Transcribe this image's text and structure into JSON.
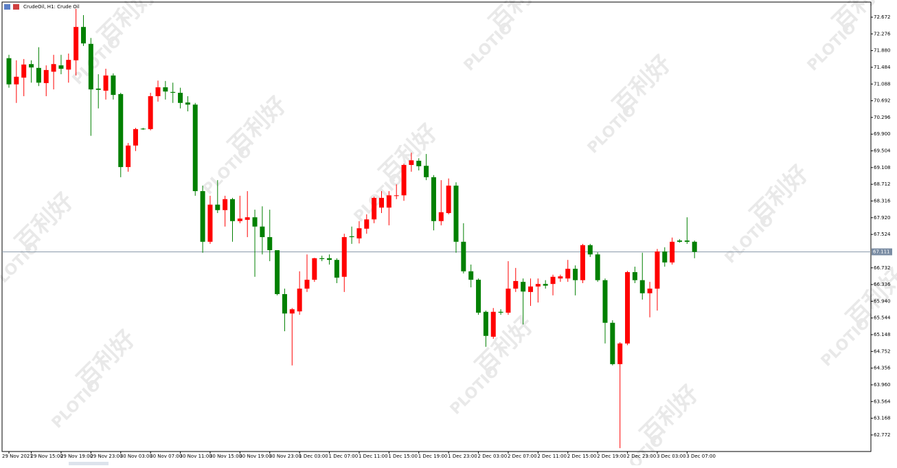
{
  "chart_data": {
    "type": "candlestick",
    "title": "CrudeOil, H1:  Crude Oil",
    "watermark": {
      "text": "百利好",
      "brand": "PLOTIO"
    },
    "up_color": "#ff0000",
    "down_color": "#008000",
    "current_price": 67.111,
    "categories": [
      "29 Nov 2021",
      null,
      null,
      "29 Nov 15:00",
      null,
      null,
      null,
      "29 Nov 19:00",
      null,
      null,
      null,
      "29 Nov 23:00",
      null,
      null,
      null,
      "30 Nov 03:00",
      null,
      null,
      null,
      "30 Nov 07:00",
      null,
      null,
      null,
      "30 Nov 11:00",
      null,
      null,
      null,
      "30 Nov 15:00",
      null,
      null,
      null,
      "30 Nov 19:00",
      null,
      null,
      null,
      "30 Nov 23:00",
      null,
      null,
      null,
      "1 Dec 03:00",
      null,
      null,
      null,
      "1 Dec 07:00",
      null,
      null,
      null,
      "1 Dec 11:00",
      null,
      null,
      null,
      "1 Dec 15:00",
      null,
      null,
      null,
      "1 Dec 19:00",
      null,
      null,
      null,
      "1 Dec 23:00",
      null,
      null,
      null,
      "2 Dec 03:00",
      null,
      null,
      null,
      "2 Dec 07:00",
      null,
      null,
      null,
      "2 Dec 11:00",
      null,
      null,
      null,
      "2 Dec 15:00",
      null,
      null,
      null,
      "2 Dec 19:00",
      null,
      null,
      null,
      "2 Dec 23:00",
      null,
      null,
      null,
      "3 Dec 03:00",
      null,
      null,
      null,
      "3 Dec 07:00",
      null
    ],
    "open": [
      71.7,
      71.08,
      71.24,
      71.56,
      71.47,
      71.11,
      71.38,
      71.53,
      71.43,
      71.65,
      72.44,
      72.04,
      70.98,
      70.93,
      71.29,
      70.85,
      69.12,
      69.63,
      70.03,
      70.02,
      70.8,
      71.01,
      70.9,
      70.88,
      70.65,
      70.6,
      68.55,
      67.35,
      68.23,
      68.1,
      68.36,
      67.84,
      67.87,
      67.93,
      67.71,
      67.46,
      67.15,
      66.11,
      65.65,
      65.7,
      66.24,
      66.45,
      66.96,
      66.96,
      66.92,
      66.52,
      67.48,
      67.43,
      67.66,
      67.88,
      68.16,
      68.16,
      68.44,
      68.45,
      69.17,
      69.27,
      69.15,
      68.88,
      67.84,
      68.03,
      68.68,
      67.35,
      66.65,
      66.45,
      65.69,
      65.1,
      65.69,
      65.67,
      66.24,
      66.4,
      66.16,
      66.29,
      66.35,
      66.35,
      66.48,
      66.48,
      66.71,
      66.44,
      67.27,
      67.05,
      66.44,
      65.43,
      64.45,
      64.94,
      66.63,
      66.44,
      66.13,
      66.24,
      67.12,
      66.86,
      67.38,
      67.38,
      67.35
    ],
    "high": [
      71.78,
      71.65,
      71.68,
      71.65,
      71.96,
      71.53,
      71.78,
      71.78,
      71.81,
      72.87,
      72.72,
      72.18,
      71.32,
      71.45,
      71.34,
      70.88,
      69.69,
      70.05,
      70.05,
      70.88,
      71.17,
      71.16,
      71.12,
      71.0,
      70.8,
      70.64,
      68.68,
      68.44,
      68.81,
      68.44,
      68.39,
      68.44,
      68.55,
      68.11,
      68.19,
      68.11,
      67.14,
      66.24,
      65.78,
      66.65,
      67.05,
      66.97,
      67.02,
      67.05,
      66.96,
      67.54,
      67.71,
      67.84,
      68.0,
      68.42,
      68.55,
      68.55,
      68.71,
      69.2,
      69.46,
      69.33,
      69.43,
      68.93,
      68.81,
      68.85,
      68.76,
      67.79,
      66.81,
      66.48,
      65.72,
      65.78,
      65.75,
      66.89,
      66.73,
      66.48,
      66.48,
      66.48,
      66.44,
      66.57,
      66.57,
      66.92,
      66.79,
      67.3,
      67.3,
      67.1,
      66.48,
      65.49,
      64.97,
      66.66,
      66.76,
      67.09,
      66.4,
      67.18,
      67.22,
      67.45,
      67.41,
      67.93,
      67.38
    ],
    "low": [
      71.0,
      70.64,
      70.8,
      71.12,
      71.04,
      70.8,
      70.96,
      71.32,
      71.12,
      71.29,
      71.99,
      69.86,
      70.51,
      70.72,
      70.72,
      68.88,
      69.01,
      69.5,
      70.0,
      69.99,
      70.67,
      70.72,
      70.64,
      70.51,
      70.44,
      68.44,
      67.09,
      67.3,
      68.03,
      67.71,
      67.35,
      67.79,
      67.46,
      66.52,
      67.05,
      66.89,
      66.08,
      65.23,
      64.42,
      65.62,
      66.16,
      66.4,
      66.89,
      66.81,
      66.37,
      66.16,
      67.3,
      67.31,
      67.54,
      67.79,
      68.03,
      67.74,
      68.36,
      68.32,
      69.01,
      69.04,
      68.81,
      67.62,
      67.74,
      68.0,
      67.09,
      66.6,
      66.27,
      65.62,
      64.86,
      65.05,
      65.62,
      65.62,
      66.16,
      65.39,
      65.83,
      65.91,
      66.24,
      66.08,
      66.4,
      66.4,
      66.08,
      66.37,
      66.99,
      66.4,
      64.94,
      64.42,
      62.46,
      64.9,
      66.37,
      65.98,
      65.56,
      65.72,
      66.76,
      66.81,
      67.33,
      67.3,
      66.96
    ],
    "close": [
      71.08,
      71.26,
      71.55,
      71.48,
      71.12,
      71.42,
      71.56,
      71.45,
      71.66,
      72.44,
      72.05,
      70.96,
      70.95,
      71.29,
      70.83,
      69.12,
      69.63,
      70.02,
      70.02,
      70.8,
      71.01,
      70.91,
      70.88,
      70.64,
      70.6,
      68.55,
      67.35,
      68.23,
      68.1,
      68.36,
      67.84,
      67.9,
      67.93,
      67.71,
      67.46,
      67.15,
      66.11,
      65.65,
      65.75,
      66.24,
      66.45,
      66.96,
      66.94,
      66.92,
      66.5,
      67.46,
      67.46,
      67.67,
      67.88,
      68.39,
      68.39,
      68.45,
      68.45,
      69.17,
      69.28,
      69.14,
      68.88,
      67.84,
      68.05,
      68.68,
      67.35,
      66.65,
      66.45,
      65.67,
      65.12,
      65.69,
      65.67,
      66.24,
      66.42,
      66.17,
      66.29,
      66.35,
      66.31,
      66.52,
      66.53,
      66.71,
      66.44,
      67.27,
      67.05,
      66.44,
      65.43,
      64.45,
      64.94,
      66.63,
      66.44,
      66.13,
      66.24,
      67.12,
      66.86,
      67.35,
      67.35,
      67.35,
      67.11
    ],
    "ylim": [
      62.38,
      73.03
    ],
    "yticks": [
      72.672,
      72.276,
      {
        "value": 71.88,
        "label": "71.880"
      },
      71.484,
      71.088,
      70.692,
      70.296,
      {
        "value": 69.9,
        "label": "69.900"
      },
      69.504,
      69.108,
      68.712,
      68.316,
      {
        "value": 67.92,
        "label": "67.920"
      },
      67.524,
      66.732,
      66.336,
      {
        "value": 65.94,
        "label": "65.940"
      },
      65.544,
      65.148,
      64.752,
      64.356,
      {
        "value": 63.96,
        "label": "63.960"
      },
      63.564,
      63.168,
      62.772
    ]
  }
}
